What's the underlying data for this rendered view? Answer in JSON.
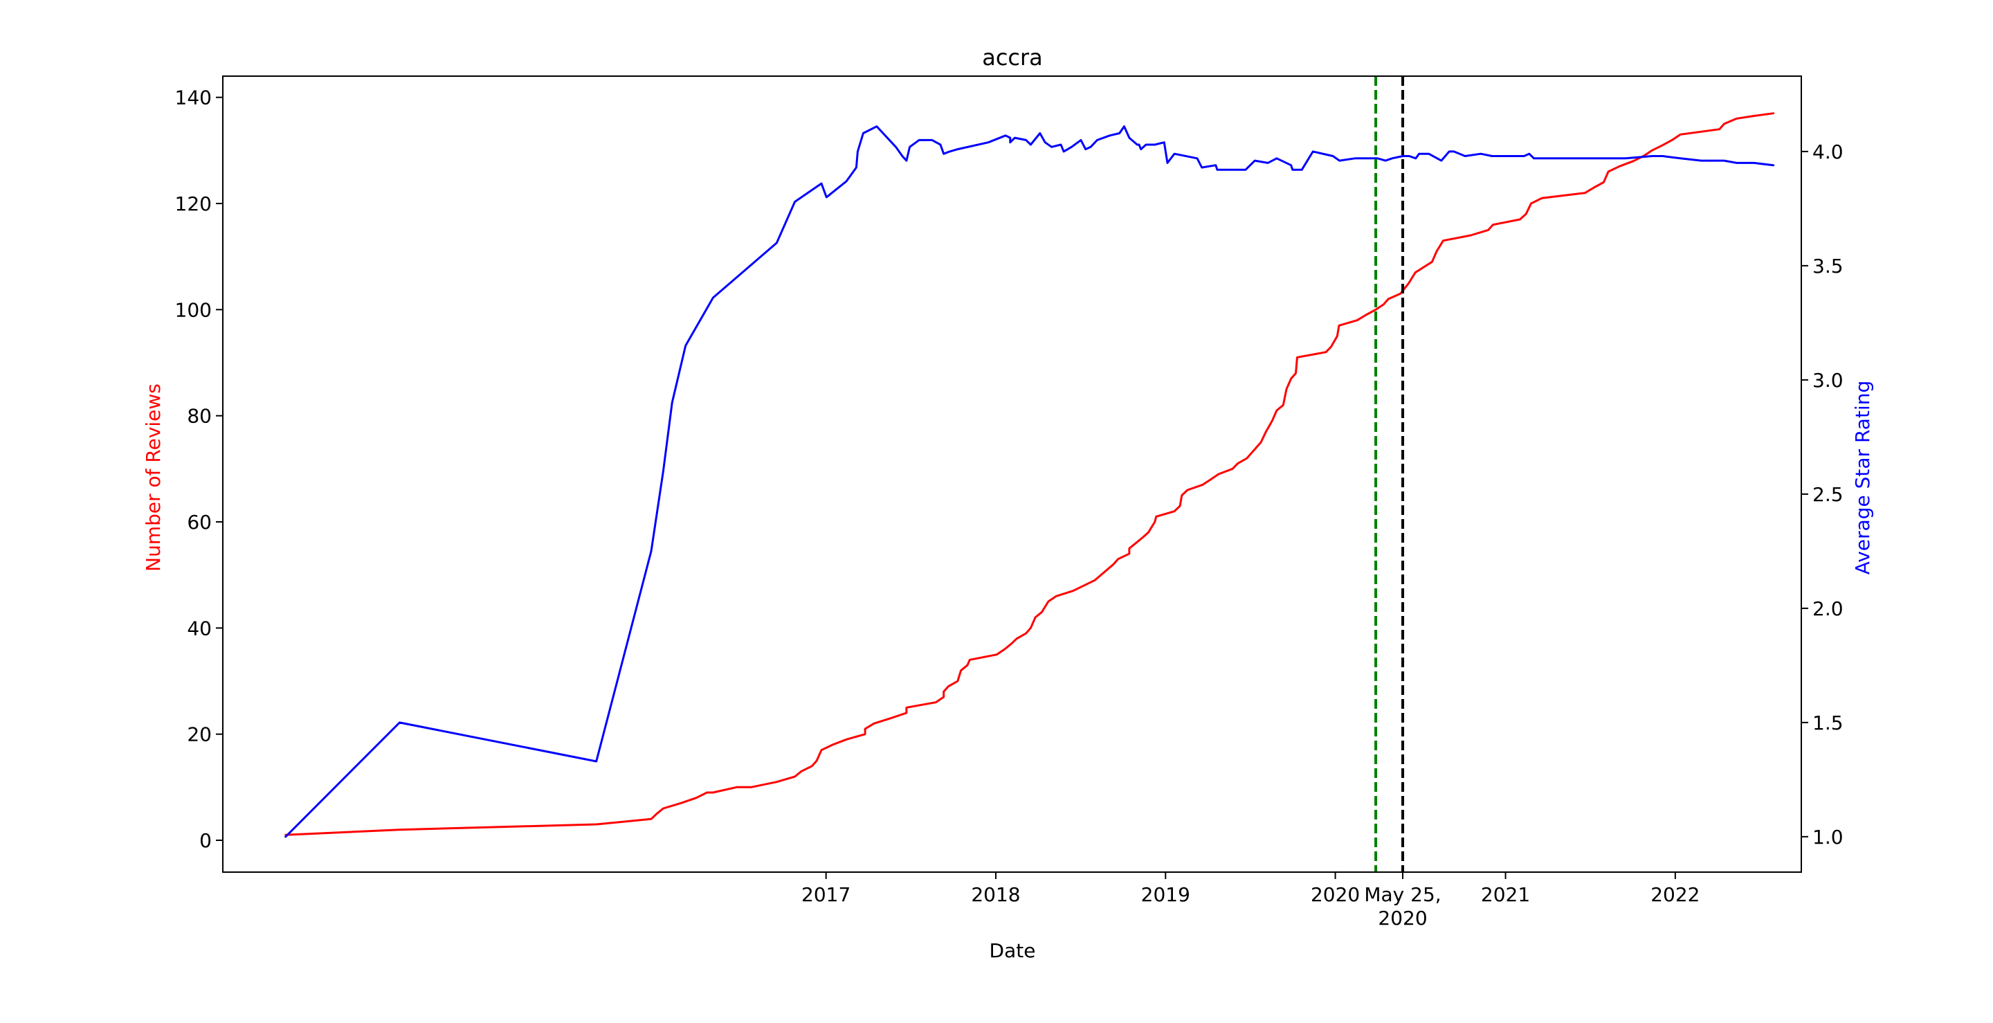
{
  "chart_data": {
    "type": "line",
    "title": "accra",
    "xlabel": "Date",
    "ylabel_left": "Number of Reviews",
    "ylabel_right": "Average Star Rating",
    "colors": {
      "reviews": "#ff0000",
      "rating": "#0000ff",
      "green_line": "#008000",
      "black_line": "#000000",
      "axes": "#000000"
    },
    "grid": false,
    "xlim": [
      "2013-06-14",
      "2022-09-29"
    ],
    "ylim_left": [
      -6,
      144
    ],
    "ylim_right": [
      0.845,
      4.33
    ],
    "x_ticks": [
      {
        "label": "2017",
        "date": "2017-01-01"
      },
      {
        "label": "2018",
        "date": "2018-01-01"
      },
      {
        "label": "2019",
        "date": "2019-01-01"
      },
      {
        "label": "2020",
        "date": "2020-01-01"
      },
      {
        "label": "May 25,\n2020",
        "date": "2020-05-25"
      },
      {
        "label": "2021",
        "date": "2021-01-01"
      },
      {
        "label": "2022",
        "date": "2022-01-01"
      }
    ],
    "y_ticks_left": [
      "0",
      "20",
      "40",
      "60",
      "80",
      "100",
      "120",
      "140"
    ],
    "y_ticks_right": [
      "1.0",
      "1.5",
      "2.0",
      "2.5",
      "3.0",
      "3.5",
      "4.0"
    ],
    "vertical_lines": [
      {
        "date": "2020-03-28",
        "color": "#008000",
        "style": "dashed"
      },
      {
        "date": "2020-05-25",
        "color": "#000000",
        "style": "dashed"
      }
    ],
    "series": [
      {
        "axis": "left",
        "color": "#ff0000",
        "points": [
          [
            "2013-10-27",
            1
          ],
          [
            "2014-06-29",
            2
          ],
          [
            "2015-08-26",
            3
          ],
          [
            "2015-12-22",
            4
          ],
          [
            "2016-01-03",
            5
          ],
          [
            "2016-01-17",
            6
          ],
          [
            "2016-02-24",
            7
          ],
          [
            "2016-03-28",
            8
          ],
          [
            "2016-04-20",
            9
          ],
          [
            "2016-05-03",
            9
          ],
          [
            "2016-06-23",
            10
          ],
          [
            "2016-07-24",
            10
          ],
          [
            "2016-09-17",
            11
          ],
          [
            "2016-10-26",
            12
          ],
          [
            "2016-11-09",
            13
          ],
          [
            "2016-12-02",
            14
          ],
          [
            "2016-12-12",
            15
          ],
          [
            "2016-12-22",
            17
          ],
          [
            "2017-01-15",
            18
          ],
          [
            "2017-02-14",
            19
          ],
          [
            "2017-03-26",
            20
          ],
          [
            "2017-03-26",
            21
          ],
          [
            "2017-04-14",
            22
          ],
          [
            "2017-05-20",
            23
          ],
          [
            "2017-06-23",
            24
          ],
          [
            "2017-06-23",
            25
          ],
          [
            "2017-08-25",
            26
          ],
          [
            "2017-09-11",
            27
          ],
          [
            "2017-09-11",
            28
          ],
          [
            "2017-09-21",
            29
          ],
          [
            "2017-10-11",
            30
          ],
          [
            "2017-10-18",
            32
          ],
          [
            "2017-11-01",
            33
          ],
          [
            "2017-11-06",
            34
          ],
          [
            "2018-01-03",
            35
          ],
          [
            "2018-01-20",
            36
          ],
          [
            "2018-02-03",
            37
          ],
          [
            "2018-02-15",
            38
          ],
          [
            "2018-03-07",
            39
          ],
          [
            "2018-03-17",
            40
          ],
          [
            "2018-03-27",
            42
          ],
          [
            "2018-04-10",
            43
          ],
          [
            "2018-04-24",
            45
          ],
          [
            "2018-05-11",
            46
          ],
          [
            "2018-06-16",
            47
          ],
          [
            "2018-08-02",
            49
          ],
          [
            "2018-08-15",
            50
          ],
          [
            "2018-09-11",
            52
          ],
          [
            "2018-09-21",
            53
          ],
          [
            "2018-10-15",
            54
          ],
          [
            "2018-10-15",
            55
          ],
          [
            "2018-10-29",
            56
          ],
          [
            "2018-11-12",
            57
          ],
          [
            "2018-11-25",
            58
          ],
          [
            "2018-12-09",
            60
          ],
          [
            "2018-12-12",
            61
          ],
          [
            "2019-01-20",
            62
          ],
          [
            "2019-02-01",
            63
          ],
          [
            "2019-02-05",
            65
          ],
          [
            "2019-02-17",
            66
          ],
          [
            "2019-03-22",
            67
          ],
          [
            "2019-04-08",
            68
          ],
          [
            "2019-04-25",
            69
          ],
          [
            "2019-05-25",
            70
          ],
          [
            "2019-06-05",
            71
          ],
          [
            "2019-06-25",
            72
          ],
          [
            "2019-07-05",
            73
          ],
          [
            "2019-07-15",
            74
          ],
          [
            "2019-07-25",
            75
          ],
          [
            "2019-08-05",
            77
          ],
          [
            "2019-08-18",
            79
          ],
          [
            "2019-08-28",
            81
          ],
          [
            "2019-09-11",
            82
          ],
          [
            "2019-09-18",
            85
          ],
          [
            "2019-09-28",
            87
          ],
          [
            "2019-10-08",
            88
          ],
          [
            "2019-10-11",
            91
          ],
          [
            "2019-12-12",
            92
          ],
          [
            "2019-12-23",
            93
          ],
          [
            "2020-01-05",
            95
          ],
          [
            "2020-01-09",
            97
          ],
          [
            "2020-02-17",
            98
          ],
          [
            "2020-03-07",
            99
          ],
          [
            "2020-03-28",
            100
          ],
          [
            "2020-04-14",
            101
          ],
          [
            "2020-04-24",
            102
          ],
          [
            "2020-05-20",
            103
          ],
          [
            "2020-06-07",
            105
          ],
          [
            "2020-06-21",
            107
          ],
          [
            "2020-07-27",
            109
          ],
          [
            "2020-08-06",
            111
          ],
          [
            "2020-08-20",
            113
          ],
          [
            "2020-10-18",
            114
          ],
          [
            "2020-11-25",
            115
          ],
          [
            "2020-12-05",
            116
          ],
          [
            "2021-02-01",
            117
          ],
          [
            "2021-02-14",
            118
          ],
          [
            "2021-02-25",
            120
          ],
          [
            "2021-03-20",
            121
          ],
          [
            "2021-06-21",
            122
          ],
          [
            "2021-07-10",
            123
          ],
          [
            "2021-07-31",
            124
          ],
          [
            "2021-08-10",
            126
          ],
          [
            "2021-09-03",
            127
          ],
          [
            "2021-10-03",
            128
          ],
          [
            "2021-10-26",
            129
          ],
          [
            "2021-11-12",
            130
          ],
          [
            "2021-12-05",
            131
          ],
          [
            "2021-12-26",
            132
          ],
          [
            "2022-01-12",
            133
          ],
          [
            "2022-04-06",
            134
          ],
          [
            "2022-04-16",
            135
          ],
          [
            "2022-05-13",
            136
          ],
          [
            "2022-06-19",
            136.5
          ],
          [
            "2022-07-31",
            137
          ]
        ]
      },
      {
        "axis": "right",
        "color": "#0000ff",
        "points": [
          [
            "2013-10-27",
            1.0
          ],
          [
            "2014-06-29",
            1.5
          ],
          [
            "2015-08-26",
            1.33
          ],
          [
            "2015-12-22",
            2.25
          ],
          [
            "2016-01-17",
            2.6
          ],
          [
            "2016-02-05",
            2.9
          ],
          [
            "2016-03-05",
            3.15
          ],
          [
            "2016-05-03",
            3.36
          ],
          [
            "2016-09-17",
            3.6
          ],
          [
            "2016-10-26",
            3.78
          ],
          [
            "2016-12-22",
            3.86
          ],
          [
            "2017-01-02",
            3.8
          ],
          [
            "2017-02-14",
            3.87
          ],
          [
            "2017-03-07",
            3.93
          ],
          [
            "2017-03-10",
            4.0
          ],
          [
            "2017-03-22",
            4.08
          ],
          [
            "2017-04-20",
            4.11
          ],
          [
            "2017-05-31",
            4.02
          ],
          [
            "2017-06-14",
            3.98
          ],
          [
            "2017-06-23",
            3.96
          ],
          [
            "2017-06-30",
            4.02
          ],
          [
            "2017-07-20",
            4.05
          ],
          [
            "2017-08-17",
            4.05
          ],
          [
            "2017-09-04",
            4.03
          ],
          [
            "2017-09-11",
            3.99
          ],
          [
            "2017-09-24",
            4.0
          ],
          [
            "2017-10-11",
            4.01
          ],
          [
            "2017-12-16",
            4.04
          ],
          [
            "2018-01-22",
            4.07
          ],
          [
            "2018-02-01",
            4.06
          ],
          [
            "2018-02-01",
            4.04
          ],
          [
            "2018-02-11",
            4.06
          ],
          [
            "2018-03-07",
            4.05
          ],
          [
            "2018-03-17",
            4.03
          ],
          [
            "2018-04-06",
            4.08
          ],
          [
            "2018-04-17",
            4.04
          ],
          [
            "2018-05-01",
            4.02
          ],
          [
            "2018-05-21",
            4.03
          ],
          [
            "2018-05-27",
            4.0
          ],
          [
            "2018-06-13",
            4.02
          ],
          [
            "2018-07-03",
            4.05
          ],
          [
            "2018-07-13",
            4.01
          ],
          [
            "2018-07-24",
            4.02
          ],
          [
            "2018-08-07",
            4.05
          ],
          [
            "2018-09-03",
            4.07
          ],
          [
            "2018-09-24",
            4.08
          ],
          [
            "2018-10-04",
            4.11
          ],
          [
            "2018-10-15",
            4.06
          ],
          [
            "2018-11-01",
            4.03
          ],
          [
            "2018-11-05",
            4.03
          ],
          [
            "2018-11-09",
            4.01
          ],
          [
            "2018-11-20",
            4.03
          ],
          [
            "2018-12-09",
            4.03
          ],
          [
            "2018-12-29",
            4.04
          ],
          [
            "2019-01-05",
            3.95
          ],
          [
            "2019-01-20",
            3.99
          ],
          [
            "2019-03-10",
            3.97
          ],
          [
            "2019-03-20",
            3.93
          ],
          [
            "2019-04-19",
            3.94
          ],
          [
            "2019-04-22",
            3.92
          ],
          [
            "2019-06-22",
            3.92
          ],
          [
            "2019-07-12",
            3.96
          ],
          [
            "2019-08-09",
            3.95
          ],
          [
            "2019-08-28",
            3.97
          ],
          [
            "2019-09-28",
            3.94
          ],
          [
            "2019-10-01",
            3.92
          ],
          [
            "2019-10-21",
            3.92
          ],
          [
            "2019-11-14",
            4.0
          ],
          [
            "2019-12-27",
            3.98
          ],
          [
            "2020-01-10",
            3.96
          ],
          [
            "2020-02-12",
            3.97
          ],
          [
            "2020-04-01",
            3.97
          ],
          [
            "2020-04-18",
            3.96
          ],
          [
            "2020-05-02",
            3.97
          ],
          [
            "2020-05-25",
            3.98
          ],
          [
            "2020-06-08",
            3.98
          ],
          [
            "2020-06-22",
            3.97
          ],
          [
            "2020-06-29",
            3.99
          ],
          [
            "2020-07-20",
            3.99
          ],
          [
            "2020-08-16",
            3.96
          ],
          [
            "2020-09-02",
            4.0
          ],
          [
            "2020-09-12",
            4.0
          ],
          [
            "2020-10-06",
            3.98
          ],
          [
            "2020-11-09",
            3.99
          ],
          [
            "2020-12-03",
            3.98
          ],
          [
            "2020-12-10",
            3.98
          ],
          [
            "2021-02-10",
            3.98
          ],
          [
            "2021-02-21",
            3.99
          ],
          [
            "2021-03-03",
            3.97
          ],
          [
            "2021-04-15",
            3.97
          ],
          [
            "2021-05-28",
            3.97
          ],
          [
            "2021-07-14",
            3.97
          ],
          [
            "2021-07-31",
            3.97
          ],
          [
            "2021-08-03",
            3.97
          ],
          [
            "2021-08-17",
            3.97
          ],
          [
            "2021-09-16",
            3.97
          ],
          [
            "2021-11-12",
            3.98
          ],
          [
            "2021-12-05",
            3.98
          ],
          [
            "2022-01-12",
            3.97
          ],
          [
            "2022-02-26",
            3.96
          ],
          [
            "2022-03-04",
            3.96
          ],
          [
            "2022-04-16",
            3.96
          ],
          [
            "2022-05-13",
            3.95
          ],
          [
            "2022-06-04",
            3.95
          ],
          [
            "2022-06-19",
            3.95
          ],
          [
            "2022-07-31",
            3.94
          ]
        ]
      }
    ]
  }
}
